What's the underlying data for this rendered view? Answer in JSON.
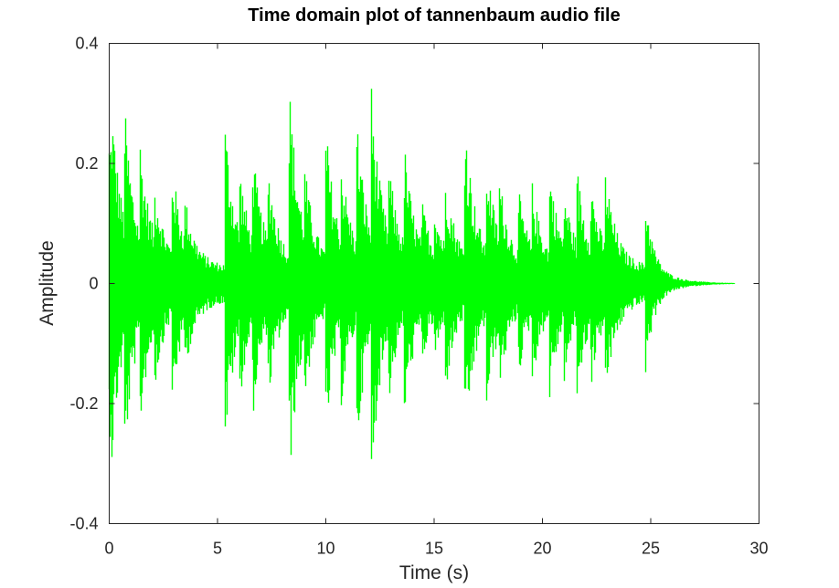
{
  "chart_data": {
    "type": "line",
    "title": "Time domain plot of tannenbaum audio file",
    "xlabel": "Time (s)",
    "ylabel": "Amplitude",
    "xlim": [
      0,
      30
    ],
    "ylim": [
      -0.4,
      0.4
    ],
    "xticks": [
      0,
      5,
      10,
      15,
      20,
      25,
      30
    ],
    "xtick_labels": [
      "0",
      "5",
      "10",
      "15",
      "20",
      "25",
      "30"
    ],
    "yticks": [
      -0.4,
      -0.2,
      0,
      0.2,
      0.4
    ],
    "ytick_labels": [
      "-0.4",
      "-0.2",
      "0",
      "0.2",
      "0.4"
    ],
    "grid": false,
    "series": [
      {
        "color": "#00ff00",
        "duration_s": 28.9,
        "note_onsets_s": [
          0.1,
          0.7,
          1.4,
          2.1,
          2.9,
          3.5,
          5.35,
          6.0,
          6.6,
          7.3,
          8.3,
          9.0,
          10.0,
          10.7,
          11.4,
          12.1,
          12.9,
          13.6,
          14.4,
          15.0,
          15.5,
          16.4,
          17.4,
          18.0,
          18.9,
          19.5,
          20.3,
          21.0,
          21.6,
          22.2,
          22.9,
          24.75
        ],
        "onset_peak_amplitude": [
          0.32,
          0.31,
          0.26,
          0.18,
          0.21,
          0.15,
          0.28,
          0.21,
          0.24,
          0.22,
          0.35,
          0.21,
          0.27,
          0.22,
          0.3,
          0.34,
          0.21,
          0.25,
          0.15,
          0.14,
          0.2,
          0.3,
          0.23,
          0.19,
          0.16,
          0.18,
          0.21,
          0.17,
          0.2,
          0.19,
          0.2,
          0.16
        ]
      }
    ]
  }
}
